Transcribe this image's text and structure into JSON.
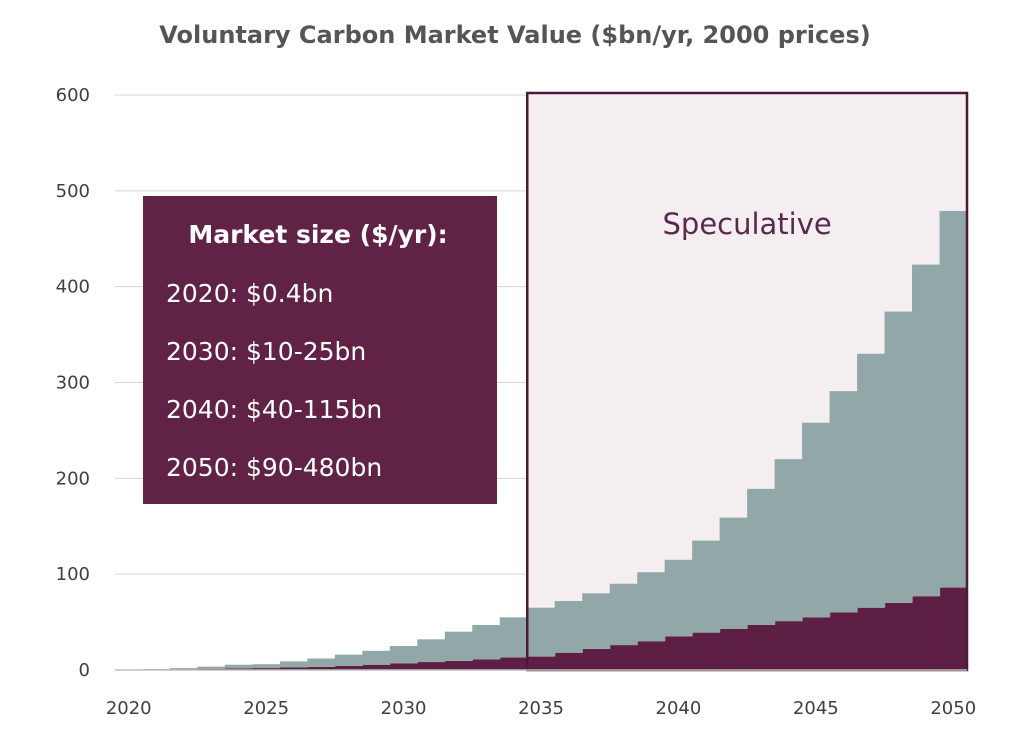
{
  "chart_data": {
    "type": "area",
    "title": "Voluntary Carbon Market Value ($bn/yr, 2000 prices)",
    "xlabel": "",
    "ylabel": "",
    "x_ticks": [
      "2020",
      "2025",
      "2030",
      "2035",
      "2040",
      "2045",
      "2050"
    ],
    "y_ticks": [
      "0",
      "100",
      "200",
      "300",
      "400",
      "500",
      "600"
    ],
    "xlim": [
      2020,
      2051
    ],
    "ylim": [
      0,
      600
    ],
    "grid": true,
    "stacked": true,
    "step": true,
    "years": [
      2020,
      2021,
      2022,
      2023,
      2024,
      2025,
      2026,
      2027,
      2028,
      2029,
      2030,
      2031,
      2032,
      2033,
      2034,
      2035,
      2036,
      2037,
      2038,
      2039,
      2040,
      2041,
      2042,
      2043,
      2044,
      2045,
      2046,
      2047,
      2048,
      2049,
      2050
    ],
    "series": [
      {
        "color": "#5e1f45",
        "values": [
          0.3,
          0.5,
          0.8,
          1.2,
          1.6,
          2,
          2.6,
          3.3,
          4.2,
          5.5,
          7,
          8.3,
          9.5,
          11,
          13,
          14,
          18,
          22,
          26,
          30,
          35,
          39,
          43,
          47,
          51,
          55,
          60,
          65,
          70,
          77,
          86
        ]
      },
      {
        "color": "#92a7a7",
        "values": [
          0.1,
          0.5,
          1.2,
          2.3,
          3.9,
          4,
          6.4,
          8.7,
          11.8,
          14.5,
          18,
          23.7,
          30.5,
          36,
          42,
          51,
          54,
          58,
          64,
          72,
          80,
          96,
          116,
          142,
          169,
          203,
          231,
          265,
          304,
          346,
          393
        ]
      }
    ],
    "region": {
      "label": "Speculative",
      "x_start": 2035,
      "x_end": 2051,
      "fill": "#f4eef1",
      "stroke": "#4a1a38"
    },
    "annotation_box": {
      "heading": "Market size ($/yr):",
      "lines": [
        "2020: $0.4bn",
        "2030: $10-25bn",
        "2040: $40-115bn",
        "2050: $90-480bn"
      ],
      "fill": "#612345"
    },
    "colors": {
      "grid": "#d4d4d4",
      "axis": "#bfbfbf"
    }
  }
}
